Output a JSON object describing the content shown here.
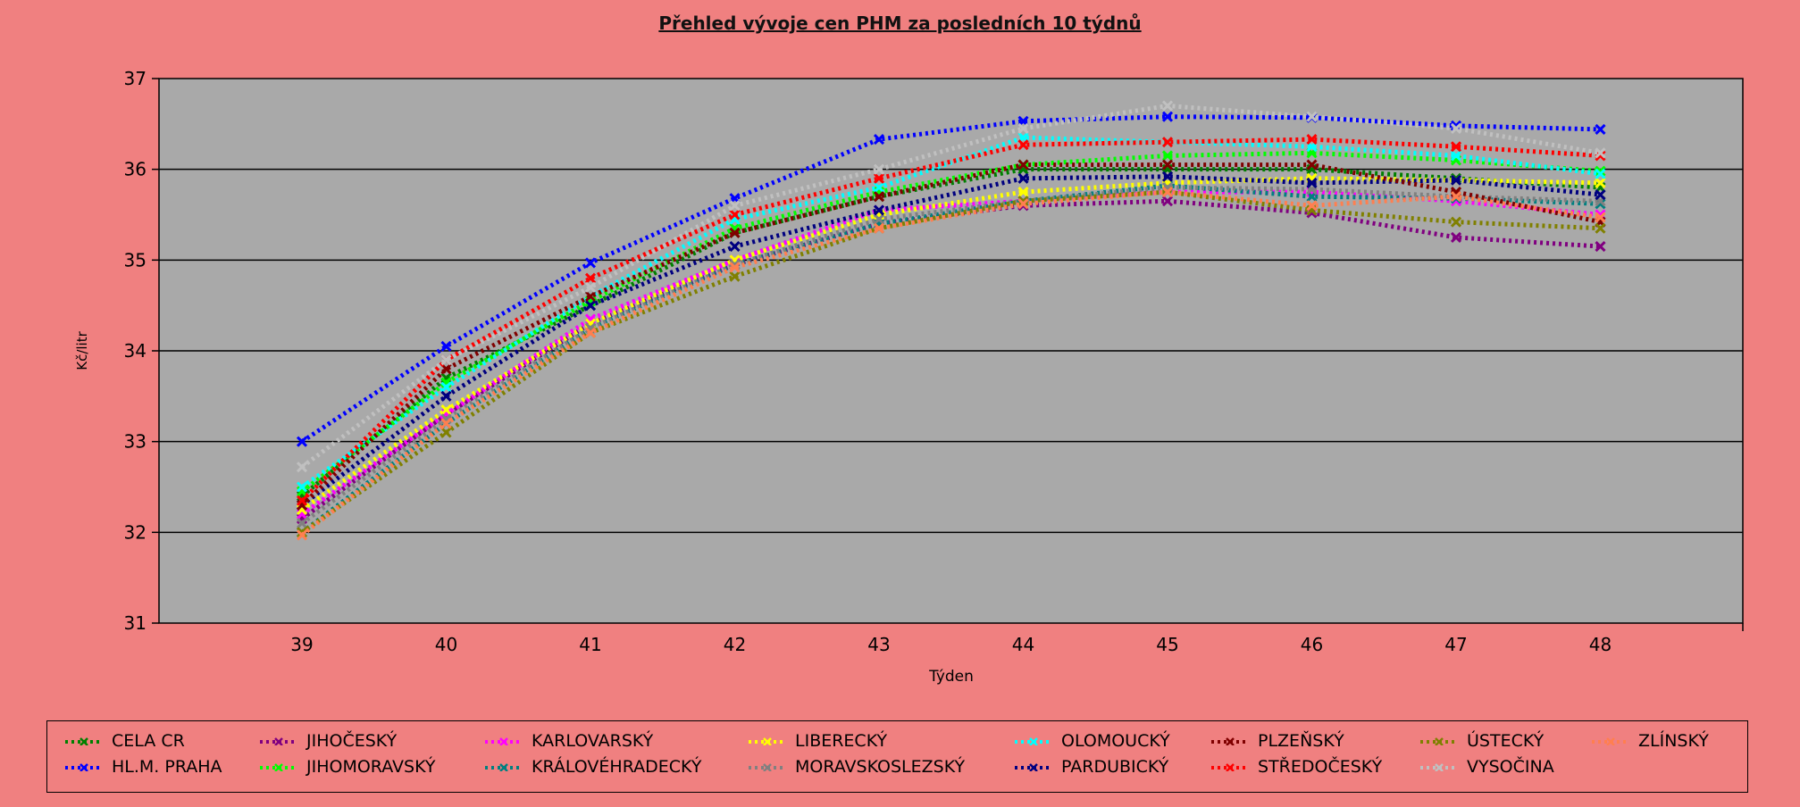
{
  "chart_data": {
    "type": "line",
    "title": "Přehled vývoje cen PHM za posledních 10 týdnů",
    "xlabel": "Týden",
    "ylabel": "Kč/litr",
    "x": [
      39,
      40,
      41,
      42,
      43,
      44,
      45,
      46,
      47,
      48
    ],
    "ylim": [
      31,
      37
    ],
    "yticks": [
      31,
      32,
      33,
      34,
      35,
      36,
      37
    ],
    "grid": "horizontal",
    "legend_position": "bottom",
    "series": [
      {
        "name": "CELA CR",
        "color": "#008000",
        "values": [
          32.4,
          33.7,
          34.5,
          35.3,
          35.7,
          36.0,
          36.0,
          36.0,
          35.9,
          35.8
        ]
      },
      {
        "name": "HL.M. PRAHA",
        "color": "#0000ff",
        "values": [
          33.0,
          34.05,
          34.97,
          35.68,
          36.33,
          36.53,
          36.58,
          36.57,
          36.48,
          36.44
        ]
      },
      {
        "name": "JIHOČESKÝ",
        "color": "#800080",
        "values": [
          32.15,
          33.3,
          34.3,
          34.95,
          35.4,
          35.6,
          35.65,
          35.52,
          35.25,
          35.15
        ]
      },
      {
        "name": "JIHOMORAVSKÝ",
        "color": "#00ff00",
        "values": [
          32.45,
          33.65,
          34.55,
          35.35,
          35.75,
          36.05,
          36.15,
          36.18,
          36.1,
          35.98
        ]
      },
      {
        "name": "KARLOVARSKÝ",
        "color": "#ff00ff",
        "values": [
          32.2,
          33.3,
          34.35,
          35.0,
          35.55,
          35.65,
          35.75,
          35.75,
          35.65,
          35.5
        ]
      },
      {
        "name": "KRÁLOVÉHRADECKÝ",
        "color": "#008080",
        "values": [
          32.0,
          33.2,
          34.25,
          34.95,
          35.4,
          35.65,
          35.82,
          35.7,
          35.68,
          35.62
        ]
      },
      {
        "name": "LIBERECKÝ",
        "color": "#ffff00",
        "values": [
          32.25,
          33.35,
          34.3,
          35.0,
          35.5,
          35.75,
          35.85,
          35.9,
          35.88,
          35.85
        ]
      },
      {
        "name": "MORAVSKOSLEZSKÝ",
        "color": "#808080",
        "values": [
          32.1,
          33.25,
          34.25,
          34.95,
          35.45,
          35.65,
          35.8,
          35.78,
          35.7,
          35.65
        ]
      },
      {
        "name": "OLOMOUCKÝ",
        "color": "#00ffff",
        "values": [
          32.5,
          33.6,
          34.6,
          35.45,
          35.8,
          36.35,
          36.3,
          36.25,
          36.15,
          35.95
        ]
      },
      {
        "name": "PARDUBICKÝ",
        "color": "#000080",
        "values": [
          32.3,
          33.5,
          34.5,
          35.15,
          35.55,
          35.9,
          35.92,
          35.85,
          35.88,
          35.72
        ]
      },
      {
        "name": "PLZEŇSKÝ",
        "color": "#800000",
        "values": [
          32.3,
          33.8,
          34.6,
          35.3,
          35.7,
          36.05,
          36.05,
          36.05,
          35.75,
          35.42
        ]
      },
      {
        "name": "STŘEDOČESKÝ",
        "color": "#ff0000",
        "values": [
          32.35,
          33.9,
          34.8,
          35.5,
          35.9,
          36.27,
          36.3,
          36.33,
          36.25,
          36.15
        ]
      },
      {
        "name": "ÚSTECKÝ",
        "color": "#808000",
        "values": [
          32.0,
          33.1,
          34.2,
          34.82,
          35.35,
          35.65,
          35.75,
          35.55,
          35.42,
          35.35
        ]
      },
      {
        "name": "VYSOČINA",
        "color": "#c0c0c0",
        "values": [
          32.72,
          33.9,
          34.7,
          35.6,
          36.0,
          36.45,
          36.7,
          36.58,
          36.45,
          36.18
        ]
      },
      {
        "name": "ZLÍNSKÝ",
        "color": "#ff7f50",
        "values": [
          31.97,
          33.2,
          34.2,
          34.92,
          35.35,
          35.62,
          35.75,
          35.6,
          35.7,
          35.47
        ]
      }
    ]
  },
  "legend_layout_order": [
    0,
    2,
    4,
    6,
    8,
    10,
    12,
    14,
    1,
    3,
    5,
    7,
    9,
    11,
    13
  ]
}
